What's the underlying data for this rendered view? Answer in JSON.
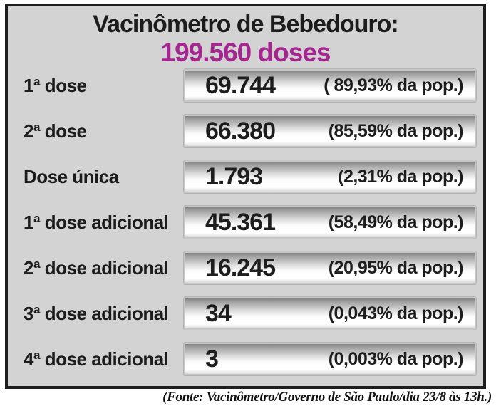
{
  "panel": {
    "title": "Vacinômetro de Bebedouro:",
    "subtitle": "199.560 doses",
    "rows": [
      {
        "label": "1ª dose",
        "value": "69.744",
        "pct": "( 89,93% da pop.)"
      },
      {
        "label": "2ª dose",
        "value": "66.380",
        "pct": "(85,59% da pop.)"
      },
      {
        "label": "Dose única",
        "value": "1.793",
        "pct": "(2,31% da pop.)"
      },
      {
        "label": "1ª dose adicional",
        "value": "45.361",
        "pct": "(58,49% da pop.)"
      },
      {
        "label": "2ª dose adicional",
        "value": "16.245",
        "pct": "(20,95% da pop.)"
      },
      {
        "label": "3ª dose adicional",
        "value": "34",
        "pct": "(0,043% da pop.)"
      },
      {
        "label": "4ª dose adicional",
        "value": "3",
        "pct": "(0,003% da pop.)"
      }
    ]
  },
  "footer": {
    "source": "(Fonte: Vacinômetro/Governo de São Paulo/dia 23/8 às 13h.)"
  },
  "colors": {
    "accent_magenta": "#A3278F",
    "panel_background": "#d3d3d4",
    "panel_border": "#1e1e1e",
    "text": "#1c1c1c"
  },
  "chart_data": {
    "type": "table",
    "title": "Vacinômetro de Bebedouro: 199.560 doses",
    "total_doses": 199560,
    "categories": [
      "1ª dose",
      "2ª dose",
      "Dose única",
      "1ª dose adicional",
      "2ª dose adicional",
      "3ª dose adicional",
      "4ª dose adicional"
    ],
    "series": [
      {
        "name": "doses",
        "values": [
          69744,
          66380,
          1793,
          45361,
          16245,
          34,
          3
        ]
      },
      {
        "name": "percent_da_populacao",
        "values": [
          89.93,
          85.59,
          2.31,
          58.49,
          20.95,
          0.043,
          0.003
        ]
      }
    ],
    "source": "(Fonte: Vacinômetro/Governo de São Paulo/dia 23/8 às 13h.)"
  }
}
